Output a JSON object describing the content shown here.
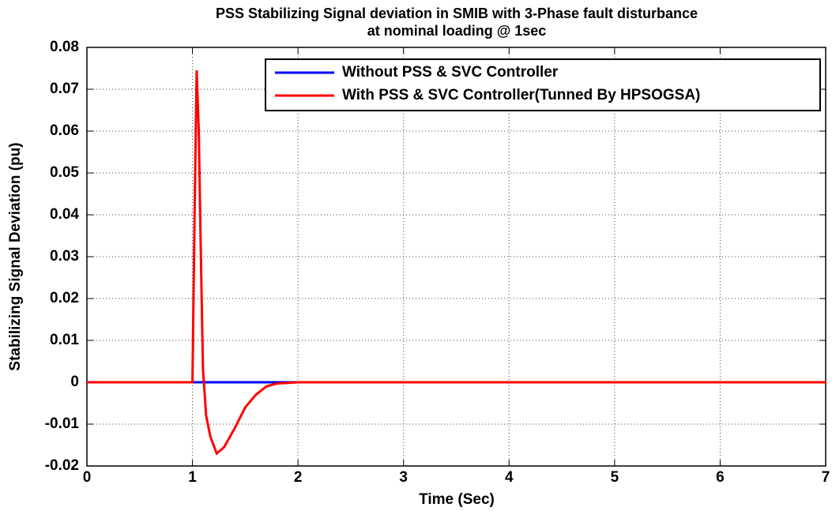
{
  "chart_data": {
    "type": "line",
    "title": [
      "PSS Stabilizing Signal deviation in SMIB with 3-Phase fault disturbance",
      "at nominal loading @ 1sec"
    ],
    "x_label": "Time (Sec)",
    "y_label": "Stabilizing Signal Deviation (pu)",
    "xlim": [
      0,
      7
    ],
    "xticks": [
      0,
      1,
      2,
      3,
      4,
      5,
      6,
      7
    ],
    "ylim": [
      -0.02,
      0.08
    ],
    "yticks": [
      -0.02,
      -0.01,
      0,
      0.01,
      0.02,
      0.03,
      0.04,
      0.05,
      0.06,
      0.07,
      0.08
    ],
    "grid": true,
    "legend": "top-right",
    "series": [
      {
        "name": "Without PSS & SVC Controller",
        "color": "#0000ff",
        "x": [
          0,
          7
        ],
        "values": [
          0,
          0
        ]
      },
      {
        "name": "With PSS & SVC Controller(Tunned By HPSOGSA)",
        "color": "#ff0000",
        "x": [
          0,
          1.0,
          1.02,
          1.04,
          1.06,
          1.08,
          1.1,
          1.13,
          1.17,
          1.23,
          1.3,
          1.4,
          1.5,
          1.6,
          1.7,
          1.8,
          2.0,
          7
        ],
        "values": [
          0,
          0,
          0.04,
          0.0745,
          0.06,
          0.03,
          0.003,
          -0.008,
          -0.013,
          -0.017,
          -0.0155,
          -0.011,
          -0.006,
          -0.003,
          -0.001,
          -0.0003,
          0,
          0
        ]
      }
    ]
  }
}
